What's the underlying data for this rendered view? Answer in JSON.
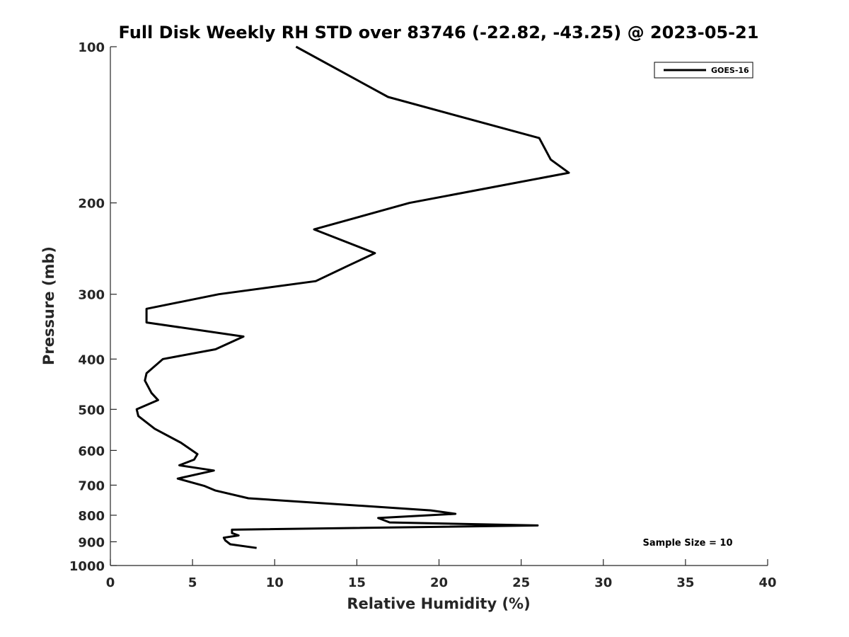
{
  "chart_data": {
    "type": "line",
    "title": "Full Disk Weekly RH STD over 83746 (-22.82, -43.25) @ 2023-05-21",
    "xlabel": "Relative Humidity (%)",
    "ylabel": "Pressure (mb)",
    "xlim": [
      0,
      40
    ],
    "ylim": [
      100,
      1000
    ],
    "y_scale": "log",
    "y_reversed": true,
    "grid": false,
    "xticks": [
      "0",
      "5",
      "10",
      "15",
      "20",
      "25",
      "30",
      "35",
      "40"
    ],
    "yticks": [
      "100",
      "200",
      "300",
      "400",
      "500",
      "600",
      "700",
      "800",
      "900",
      "1000"
    ],
    "legend": {
      "placement": "top-right"
    },
    "annotation": "Sample Size = 10",
    "series": [
      {
        "name": "GOES-16",
        "color": "#000000",
        "points": [
          [
            11.3,
            100
          ],
          [
            16.9,
            125
          ],
          [
            26.1,
            150
          ],
          [
            26.8,
            165
          ],
          [
            27.9,
            175
          ],
          [
            18.2,
            200
          ],
          [
            12.4,
            225
          ],
          [
            16.1,
            250
          ],
          [
            14.4,
            265
          ],
          [
            12.5,
            283
          ],
          [
            6.6,
            300
          ],
          [
            2.2,
            320
          ],
          [
            2.2,
            340
          ],
          [
            8.1,
            362
          ],
          [
            6.4,
            383
          ],
          [
            3.2,
            400
          ],
          [
            2.2,
            426
          ],
          [
            2.1,
            440
          ],
          [
            2.5,
            465
          ],
          [
            2.9,
            480
          ],
          [
            1.6,
            500
          ],
          [
            1.7,
            515
          ],
          [
            2.7,
            545
          ],
          [
            4.3,
            580
          ],
          [
            5.3,
            610
          ],
          [
            5.1,
            625
          ],
          [
            4.2,
            641
          ],
          [
            6.3,
            656
          ],
          [
            4.1,
            680
          ],
          [
            5.7,
            702
          ],
          [
            6.4,
            717
          ],
          [
            8.4,
            742
          ],
          [
            19.5,
            783
          ],
          [
            21.0,
            795
          ],
          [
            16.3,
            810
          ],
          [
            17.0,
            826
          ],
          [
            26.0,
            837
          ],
          [
            7.4,
            853
          ],
          [
            7.4,
            866
          ],
          [
            7.8,
            875
          ],
          [
            6.9,
            884
          ],
          [
            7.0,
            895
          ],
          [
            7.3,
            910
          ],
          [
            8.9,
            925
          ]
        ]
      }
    ]
  }
}
